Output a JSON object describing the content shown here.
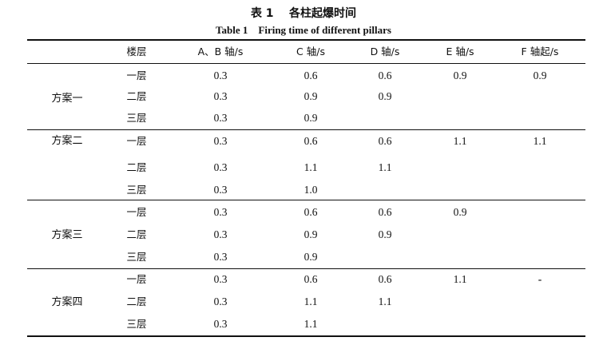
{
  "caption": {
    "cn": "表 1    各柱起爆时间",
    "en": "Table 1    Firing time of different pillars"
  },
  "columns": [
    "楼层",
    "A、B 轴/s",
    "C 轴/s",
    "D 轴/s",
    "E 轴/s",
    "F 轴起/s"
  ],
  "groups": [
    {
      "scheme": "方案一",
      "rows": [
        {
          "floor": "一层",
          "ab": "0.3",
          "c": "0.6",
          "d": "0.6",
          "e": "0.9",
          "f": "0.9"
        },
        {
          "floor": "二层",
          "ab": "0.3",
          "c": "0.9",
          "d": "0.9",
          "e": "",
          "f": ""
        },
        {
          "floor": "三层",
          "ab": "0.3",
          "c": "0.9",
          "d": "",
          "e": "",
          "f": ""
        }
      ]
    },
    {
      "scheme": "方案二",
      "rows": [
        {
          "floor": "一层",
          "ab": "0.3",
          "c": "0.6",
          "d": "0.6",
          "e": "1.1",
          "f": "1.1"
        },
        {
          "floor": "二层",
          "ab": "0.3",
          "c": "1.1",
          "d": "1.1",
          "e": "",
          "f": ""
        },
        {
          "floor": "三层",
          "ab": "0.3",
          "c": "1.0",
          "d": "",
          "e": "",
          "f": ""
        }
      ]
    },
    {
      "scheme": "方案三",
      "rows": [
        {
          "floor": "一层",
          "ab": "0.3",
          "c": "0.6",
          "d": "0.6",
          "e": "0.9",
          "f": ""
        },
        {
          "floor": "二层",
          "ab": "0.3",
          "c": "0.9",
          "d": "0.9",
          "e": "",
          "f": ""
        },
        {
          "floor": "三层",
          "ab": "0.3",
          "c": "0.9",
          "d": "",
          "e": "",
          "f": ""
        }
      ]
    },
    {
      "scheme": "方案四",
      "rows": [
        {
          "floor": "一层",
          "ab": "0.3",
          "c": "0.6",
          "d": "0.6",
          "e": "1.1",
          "f": "-"
        },
        {
          "floor": "二层",
          "ab": "0.3",
          "c": "1.1",
          "d": "1.1",
          "e": "",
          "f": ""
        },
        {
          "floor": "三层",
          "ab": "0.3",
          "c": "1.1",
          "d": "",
          "e": "",
          "f": ""
        }
      ]
    }
  ]
}
